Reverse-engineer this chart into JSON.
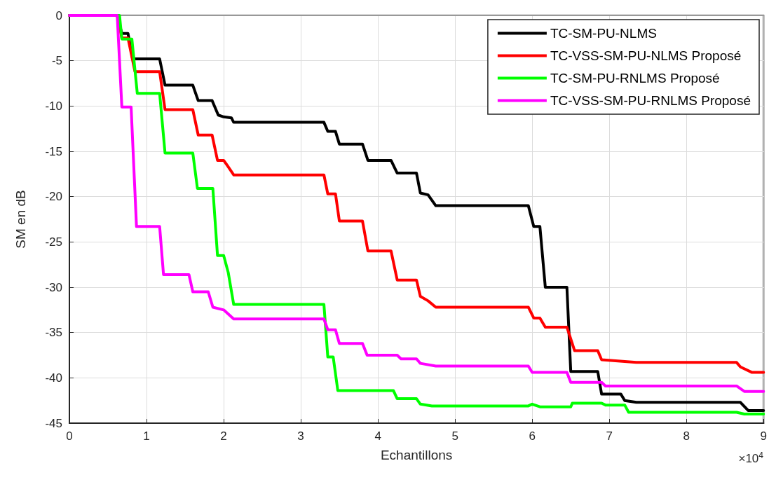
{
  "chart_data": {
    "type": "line",
    "xlabel": "Echantillons",
    "ylabel": "SM en dB",
    "annotations": [
      "×10$^{4}$"
    ],
    "xlim": [
      0,
      9
    ],
    "xticks": [
      0,
      1,
      2,
      3,
      4,
      5,
      6,
      7,
      8,
      9
    ],
    "ylim": [
      -45,
      0
    ],
    "yticks": [
      -45,
      -40,
      -35,
      -30,
      -25,
      -20,
      -15,
      -10,
      -5,
      0
    ],
    "grid": true,
    "legend": "top right",
    "marker": "none",
    "line_style": "solid",
    "series": [
      {
        "name": "TC-SM-PU-NLMS",
        "color": "#000000",
        "x": [
          0,
          0.62,
          0.68,
          0.76,
          0.82,
          1.17,
          1.24,
          1.6,
          1.67,
          1.85,
          1.93,
          2,
          2.1,
          2.13,
          3.3,
          3.35,
          3.45,
          3.5,
          3.8,
          3.87,
          4.17,
          4.25,
          4.5,
          4.55,
          4.65,
          4.75,
          5.95,
          6.02,
          6.1,
          6.17,
          6.45,
          6.5,
          6.85,
          6.9,
          7.15,
          7.2,
          7.35,
          8.7,
          8.8,
          9
        ],
        "values": [
          0,
          0,
          -2,
          -2,
          -4.8,
          -4.8,
          -7.7,
          -7.7,
          -9.4,
          -9.4,
          -11,
          -11.2,
          -11.3,
          -11.8,
          -11.8,
          -12.8,
          -12.8,
          -14.2,
          -14.2,
          -16,
          -16,
          -17.4,
          -17.4,
          -19.6,
          -19.8,
          -21,
          -21,
          -23.3,
          -23.3,
          -30,
          -30,
          -39.3,
          -39.3,
          -41.8,
          -41.8,
          -42.5,
          -42.7,
          -42.7,
          -43.6,
          -43.6
        ]
      },
      {
        "name": "TC-VSS-SM-PU-NLMS Proposé",
        "color": "#ff0000",
        "x": [
          0,
          0.62,
          0.68,
          0.76,
          0.85,
          1.17,
          1.24,
          1.6,
          1.67,
          1.85,
          1.92,
          2,
          2.05,
          2.13,
          3.3,
          3.35,
          3.45,
          3.5,
          3.8,
          3.87,
          4.17,
          4.25,
          4.5,
          4.55,
          4.65,
          4.75,
          5.95,
          6.02,
          6.1,
          6.17,
          6.45,
          6.55,
          6.85,
          6.9,
          7.35,
          8.65,
          8.7,
          8.85,
          9
        ],
        "values": [
          0,
          0,
          -2.5,
          -2.5,
          -6.2,
          -6.2,
          -10.4,
          -10.4,
          -13.2,
          -13.2,
          -16,
          -16,
          -16.6,
          -17.6,
          -17.6,
          -19.7,
          -19.7,
          -22.7,
          -22.7,
          -26,
          -26,
          -29.2,
          -29.2,
          -31,
          -31.5,
          -32.2,
          -32.2,
          -33.4,
          -33.4,
          -34.4,
          -34.4,
          -37,
          -37,
          -38,
          -38.3,
          -38.3,
          -38.8,
          -39.4,
          -39.4
        ]
      },
      {
        "name": "TC-SM-PU-RNLMS Proposé",
        "color": "#00ff00",
        "x": [
          0,
          0.65,
          0.68,
          0.81,
          0.88,
          1.17,
          1.24,
          1.6,
          1.66,
          1.86,
          1.92,
          2,
          2.06,
          2.13,
          3.3,
          3.35,
          3.42,
          3.48,
          4.2,
          4.25,
          4.5,
          4.55,
          4.7,
          5.95,
          6,
          6.1,
          6.5,
          6.52,
          6.9,
          6.95,
          7.2,
          7.25,
          8.65,
          8.75,
          9
        ],
        "values": [
          0,
          0,
          -2.6,
          -2.6,
          -8.6,
          -8.6,
          -15.2,
          -15.2,
          -19.1,
          -19.1,
          -26.5,
          -26.5,
          -28.4,
          -31.9,
          -31.9,
          -37.7,
          -37.7,
          -41.4,
          -41.4,
          -42.3,
          -42.3,
          -42.9,
          -43.1,
          -43.1,
          -42.9,
          -43.2,
          -43.2,
          -42.8,
          -42.8,
          -43,
          -43,
          -43.8,
          -43.8,
          -44,
          -44
        ]
      },
      {
        "name": "TC-VSS-SM-PU-RNLMS Proposé",
        "color": "#ff00ff",
        "x": [
          0,
          0.62,
          0.68,
          0.8,
          0.87,
          1.17,
          1.22,
          1.55,
          1.6,
          1.8,
          1.86,
          2,
          2.13,
          3.3,
          3.35,
          3.45,
          3.5,
          3.8,
          3.86,
          4.25,
          4.3,
          4.5,
          4.55,
          4.75,
          5.95,
          6,
          6.45,
          6.5,
          6.9,
          6.95,
          8.65,
          8.75,
          9
        ],
        "values": [
          0,
          0,
          -10.1,
          -10.1,
          -23.3,
          -23.3,
          -28.6,
          -28.6,
          -30.5,
          -30.5,
          -32.2,
          -32.5,
          -33.5,
          -33.5,
          -34.7,
          -34.7,
          -36.2,
          -36.2,
          -37.5,
          -37.5,
          -37.9,
          -37.9,
          -38.4,
          -38.7,
          -38.7,
          -39.4,
          -39.4,
          -40.5,
          -40.5,
          -40.9,
          -40.9,
          -41.5,
          -41.5
        ]
      }
    ]
  }
}
